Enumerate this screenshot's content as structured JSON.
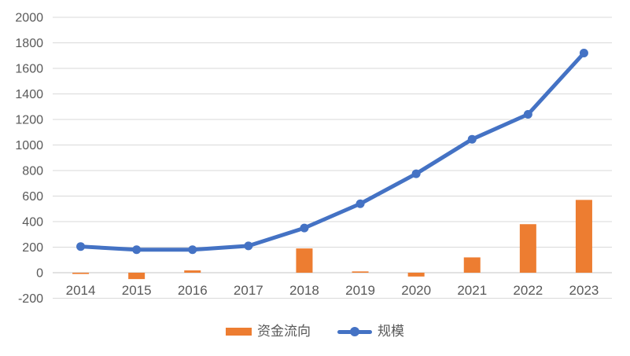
{
  "chart_data": {
    "type": "combo",
    "categories": [
      "2014",
      "2015",
      "2016",
      "2017",
      "2018",
      "2019",
      "2020",
      "2021",
      "2022",
      "2023"
    ],
    "series": [
      {
        "name": "资金流向",
        "type": "bar",
        "color": "#ED7D31",
        "values": [
          -10,
          -50,
          18,
          0,
          190,
          10,
          -30,
          120,
          380,
          570
        ]
      },
      {
        "name": "规模",
        "type": "line",
        "color": "#4472C4",
        "values": [
          205,
          180,
          180,
          210,
          350,
          540,
          775,
          1045,
          1240,
          1720
        ]
      }
    ],
    "ylim": [
      -200,
      2000
    ],
    "y_tick_step": 200,
    "y_ticks": [
      "2000",
      "1800",
      "1600",
      "1400",
      "1200",
      "1000",
      "800",
      "600",
      "400",
      "200",
      "0",
      "-200"
    ],
    "grid": true,
    "legend_position": "bottom",
    "colors": {
      "gridline": "#D9D9D9",
      "zero_axis_line": "#C6C6C6",
      "tick_label": "#595959",
      "background": "#FFFFFF"
    }
  }
}
